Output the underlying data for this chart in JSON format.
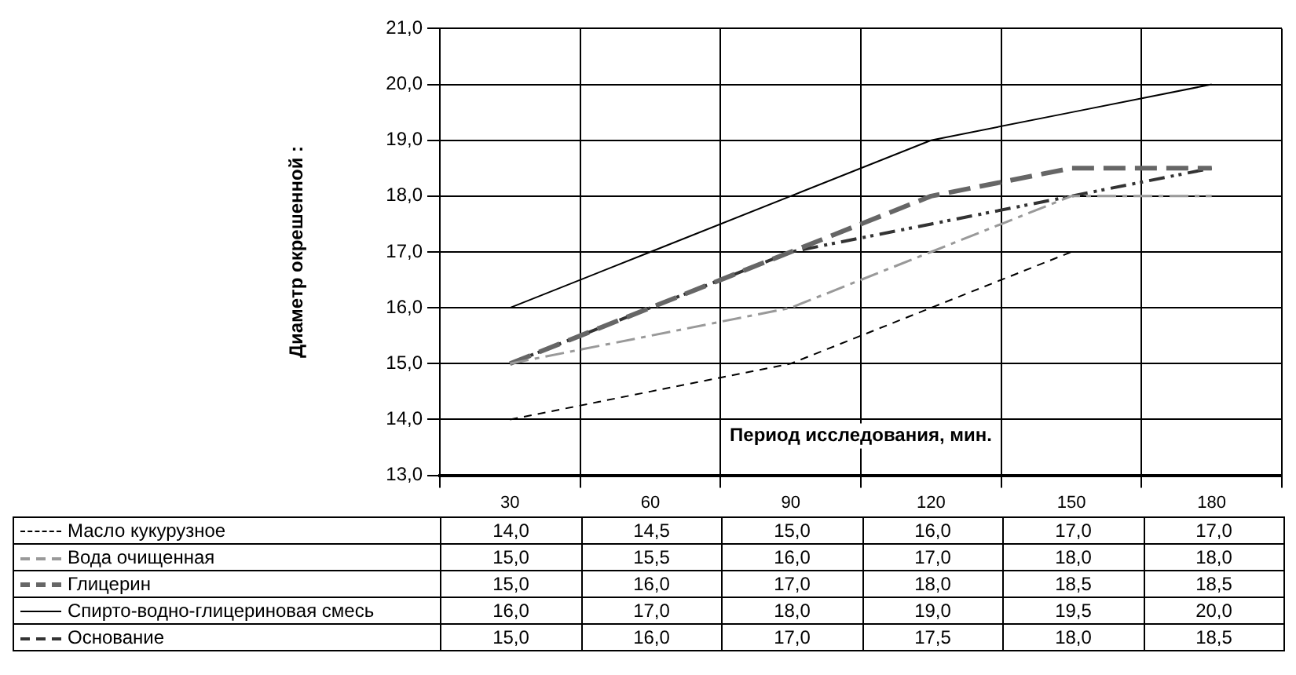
{
  "chart_data": {
    "type": "line",
    "xlabel": "Период исследования, мин.",
    "ylabel": "Диаметр окрешенной :",
    "categories": [
      "30",
      "60",
      "90",
      "120",
      "150",
      "180"
    ],
    "series": [
      {
        "name": "Масло кукурузное",
        "color": "#000000",
        "line_style": "dashed",
        "values": [
          14.0,
          14.5,
          15.0,
          16.0,
          17.0,
          17.0
        ],
        "value_labels": [
          "14,0",
          "14,5",
          "15,0",
          "16,0",
          "17,0",
          "17,0"
        ]
      },
      {
        "name": "Вода очищенная",
        "color": "#999999",
        "line_style": "dashed",
        "values": [
          15.0,
          15.5,
          16.0,
          17.0,
          18.0,
          18.0
        ],
        "value_labels": [
          "15,0",
          "15,5",
          "16,0",
          "17,0",
          "18,0",
          "18,0"
        ]
      },
      {
        "name": "Глицерин",
        "color": "#666666",
        "line_style": "dashed",
        "values": [
          15.0,
          16.0,
          17.0,
          18.0,
          18.5,
          18.5
        ],
        "value_labels": [
          "15,0",
          "16,0",
          "17,0",
          "18,0",
          "18,5",
          "18,5"
        ]
      },
      {
        "name": "Спирто-водно-глицериновая смесь",
        "color": "#000000",
        "line_style": "solid",
        "values": [
          16.0,
          17.0,
          18.0,
          19.0,
          19.5,
          20.0
        ],
        "value_labels": [
          "16,0",
          "17,0",
          "18,0",
          "19,0",
          "19,5",
          "20,0"
        ]
      },
      {
        "name": "Основание",
        "color": "#333333",
        "line_style": "dashed",
        "values": [
          15.0,
          16.0,
          17.0,
          17.5,
          18.0,
          18.5
        ],
        "value_labels": [
          "15,0",
          "16,0",
          "17,0",
          "17,5",
          "18,0",
          "18,5"
        ]
      }
    ],
    "ylim": [
      13,
      21
    ],
    "yticks": [
      {
        "value": 13,
        "label": "13,0"
      },
      {
        "value": 14,
        "label": "14,0"
      },
      {
        "value": 15,
        "label": "15,0"
      },
      {
        "value": 16,
        "label": "16,0"
      },
      {
        "value": 17,
        "label": "17,0"
      },
      {
        "value": 18,
        "label": "18,0"
      },
      {
        "value": 19,
        "label": "19,0"
      },
      {
        "value": 20,
        "label": "20,0"
      },
      {
        "value": 21,
        "label": "21,0"
      }
    ],
    "grid": true,
    "legend": "bottom left",
    "marker": "none"
  }
}
